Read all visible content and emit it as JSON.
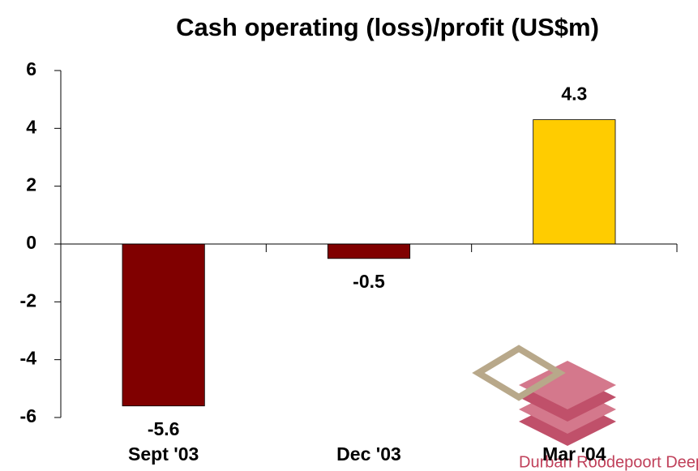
{
  "chart_data": {
    "type": "bar",
    "title": "Cash operating (loss)/profit (US$m)",
    "categories": [
      "Sept '03",
      "Dec '03",
      "Mar '04"
    ],
    "values": [
      -5.6,
      -0.5,
      4.3
    ],
    "colors": [
      "#800000",
      "#800000",
      "#ffcc00"
    ],
    "ylim": [
      -6,
      6
    ],
    "yticks": [
      -6,
      -4,
      -2,
      0,
      2,
      4,
      6
    ],
    "watermark": "Durban Roodepoort Deep, Limited"
  }
}
